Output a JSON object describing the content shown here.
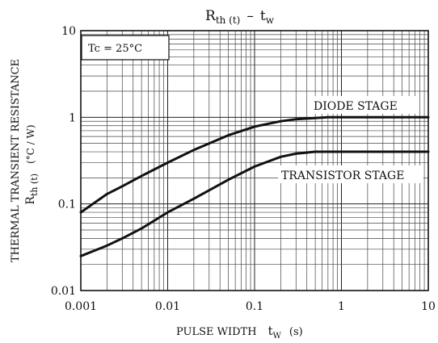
{
  "chart_data": {
    "type": "line",
    "title_main": "R",
    "title_sub": "th (t)",
    "title_dash": "–",
    "title_t": "t",
    "title_w": "w",
    "xlabel": "PULSE WIDTH",
    "xlabel_symbol": "t",
    "xlabel_symbol_sub": "W",
    "xlabel_unit": "(s)",
    "ylabel_line1": "THERMAL TRANSIENT RESISTANCE",
    "ylabel_line2_main": "R",
    "ylabel_line2_sub": "th (t)",
    "ylabel_line2_unit": "(°C / W)",
    "condition": "Tc = 25°C",
    "x_scale": "log",
    "y_scale": "log",
    "xlim": [
      0.001,
      10
    ],
    "ylim": [
      0.01,
      10
    ],
    "x_ticks": [
      0.001,
      0.01,
      0.1,
      1,
      10
    ],
    "x_tick_labels": [
      "0.001",
      "0.01",
      "0.1",
      "1",
      "10"
    ],
    "y_ticks": [
      0.01,
      0.1,
      1,
      10
    ],
    "y_tick_labels": [
      "0.01",
      "0.1",
      "1",
      "10"
    ],
    "grid": true,
    "series": [
      {
        "name": "DIODE STAGE",
        "x": [
          0.001,
          0.002,
          0.003,
          0.005,
          0.01,
          0.02,
          0.05,
          0.1,
          0.2,
          0.3,
          0.5,
          0.7,
          1,
          2,
          5,
          10
        ],
        "y": [
          0.08,
          0.13,
          0.16,
          0.21,
          0.3,
          0.42,
          0.62,
          0.78,
          0.9,
          0.95,
          0.98,
          1.0,
          1.0,
          1.0,
          1.0,
          1.0
        ]
      },
      {
        "name": "TRANSISTOR STAGE",
        "x": [
          0.001,
          0.002,
          0.003,
          0.005,
          0.01,
          0.02,
          0.05,
          0.1,
          0.2,
          0.3,
          0.5,
          0.7,
          1,
          2,
          5,
          10
        ],
        "y": [
          0.025,
          0.033,
          0.04,
          0.052,
          0.08,
          0.115,
          0.19,
          0.27,
          0.35,
          0.38,
          0.4,
          0.4,
          0.4,
          0.4,
          0.4,
          0.4
        ]
      }
    ]
  }
}
